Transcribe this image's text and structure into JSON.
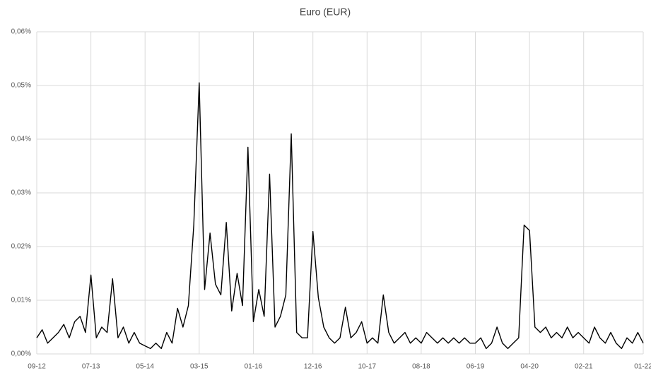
{
  "chart_data": {
    "type": "line",
    "title": "Euro (EUR)",
    "color": "#000000",
    "grid": true,
    "x": [
      "09-12",
      "10-12",
      "11-12",
      "12-12",
      "01-13",
      "02-13",
      "03-13",
      "04-13",
      "05-13",
      "06-13",
      "07-13",
      "08-13",
      "09-13",
      "10-13",
      "11-13",
      "12-13",
      "01-14",
      "02-14",
      "03-14",
      "04-14",
      "05-14",
      "06-14",
      "07-14",
      "08-14",
      "09-14",
      "10-14",
      "11-14",
      "12-14",
      "01-15",
      "02-15",
      "03-15",
      "04-15",
      "05-15",
      "06-15",
      "07-15",
      "08-15",
      "09-15",
      "10-15",
      "11-15",
      "12-15",
      "01-16",
      "02-16",
      "03-16",
      "04-16",
      "05-16",
      "06-16",
      "07-16",
      "08-16",
      "09-16",
      "10-16",
      "11-16",
      "12-16",
      "01-17",
      "02-17",
      "03-17",
      "04-17",
      "05-17",
      "06-17",
      "07-17",
      "08-17",
      "09-17",
      "10-17",
      "11-17",
      "12-17",
      "01-18",
      "02-18",
      "03-18",
      "04-18",
      "05-18",
      "06-18",
      "07-18",
      "08-18",
      "09-18",
      "10-18",
      "11-18",
      "12-18",
      "01-19",
      "02-19",
      "03-19",
      "04-19",
      "05-19",
      "06-19",
      "07-19",
      "08-19",
      "09-19",
      "10-19",
      "11-19",
      "12-19",
      "01-20",
      "02-20",
      "03-20",
      "04-20",
      "05-20",
      "06-20",
      "07-20",
      "08-20",
      "09-20",
      "10-20",
      "11-20",
      "12-20",
      "01-21",
      "02-21",
      "03-21",
      "04-21",
      "05-21",
      "06-21",
      "07-21",
      "08-21",
      "09-21",
      "10-21",
      "11-21",
      "12-21",
      "01-22"
    ],
    "values": [
      0.003,
      0.0045,
      0.002,
      0.003,
      0.004,
      0.0055,
      0.003,
      0.006,
      0.007,
      0.004,
      0.0147,
      0.003,
      0.005,
      0.004,
      0.014,
      0.003,
      0.005,
      0.002,
      0.004,
      0.002,
      0.0015,
      0.001,
      0.002,
      0.001,
      0.004,
      0.002,
      0.0085,
      0.005,
      0.009,
      0.024,
      0.0505,
      0.012,
      0.0225,
      0.013,
      0.011,
      0.0245,
      0.008,
      0.015,
      0.009,
      0.0385,
      0.006,
      0.012,
      0.007,
      0.0335,
      0.005,
      0.007,
      0.011,
      0.041,
      0.004,
      0.003,
      0.003,
      0.0228,
      0.0105,
      0.005,
      0.003,
      0.002,
      0.003,
      0.0087,
      0.003,
      0.004,
      0.006,
      0.002,
      0.003,
      0.002,
      0.011,
      0.004,
      0.002,
      0.003,
      0.004,
      0.002,
      0.003,
      0.002,
      0.004,
      0.003,
      0.002,
      0.003,
      0.002,
      0.003,
      0.002,
      0.003,
      0.002,
      0.002,
      0.003,
      0.001,
      0.002,
      0.005,
      0.002,
      0.001,
      0.002,
      0.003,
      0.024,
      0.023,
      0.005,
      0.004,
      0.005,
      0.003,
      0.004,
      0.003,
      0.005,
      0.003,
      0.004,
      0.003,
      0.002,
      0.005,
      0.003,
      0.002,
      0.004,
      0.002,
      0.001,
      0.003,
      0.002,
      0.004,
      0.002
    ],
    "xticks": [
      "09-12",
      "07-13",
      "05-14",
      "03-15",
      "01-16",
      "12-16",
      "10-17",
      "08-18",
      "06-19",
      "04-20",
      "02-21",
      "01-22"
    ],
    "ylim": [
      0,
      0.06
    ],
    "yticks": [
      {
        "value": 0,
        "label": "0,00%"
      },
      {
        "value": 0.01,
        "label": "0,01%"
      },
      {
        "value": 0.02,
        "label": "0,02%"
      },
      {
        "value": 0.03,
        "label": "0,03%"
      },
      {
        "value": 0.04,
        "label": "0,04%"
      },
      {
        "value": 0.05,
        "label": "0,05%"
      },
      {
        "value": 0.06,
        "label": "0,06%"
      }
    ]
  }
}
